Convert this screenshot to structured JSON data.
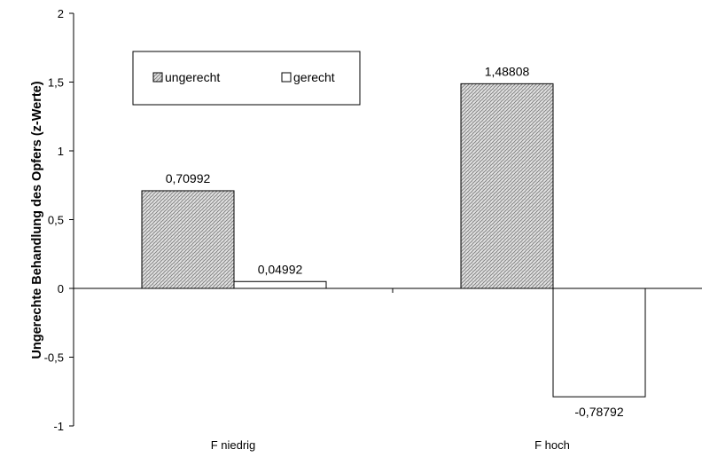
{
  "chart_data": {
    "type": "bar",
    "categories": [
      "F niedrig",
      "F hoch"
    ],
    "series": [
      {
        "name": "ungerecht",
        "values": [
          0.70992,
          1.48808
        ],
        "labels": [
          "0,70992",
          "1,48808"
        ],
        "pattern": "hatched"
      },
      {
        "name": "gerecht",
        "values": [
          0.04992,
          -0.78792
        ],
        "labels": [
          "0,04992",
          "-0,78792"
        ],
        "pattern": "white"
      }
    ],
    "title": "",
    "xlabel": "",
    "ylabel": "Ungerechte Behandlung des Opfers (z-Werte)",
    "ylim": [
      -1,
      2
    ],
    "yticks": [
      2,
      1.5,
      1,
      0.5,
      0,
      -0.5,
      -1
    ],
    "ytick_labels": [
      "2",
      "1,5",
      "1",
      "0,5",
      "0",
      "-0,5",
      "-1"
    ],
    "legend_position": "top-left",
    "grid": false,
    "colors": {
      "bar_edge": "#000000",
      "hatch_fill": "#d9d9d9",
      "gerecht_fill": "#ffffff"
    }
  }
}
